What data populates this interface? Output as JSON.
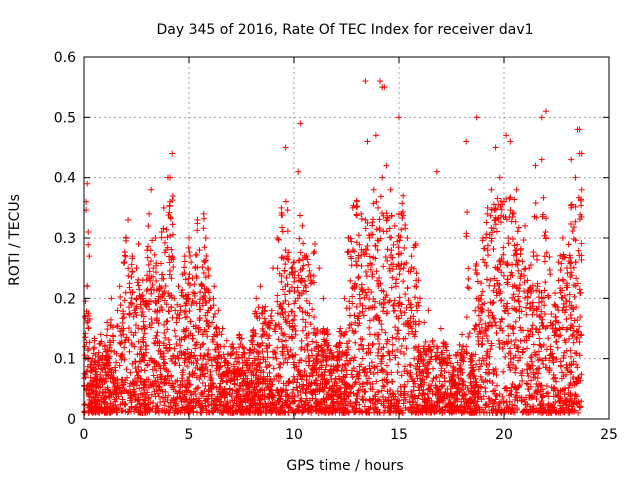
{
  "chart_data": {
    "type": "scatter",
    "title": "Day 345 of 2016, Rate Of TEC Index for receiver dav1",
    "xlabel": "GPS time / hours",
    "ylabel": "ROTI / TECUs",
    "xlim": [
      0,
      25
    ],
    "ylim": [
      0,
      0.6
    ],
    "xticks": [
      "0",
      "5",
      "10",
      "15",
      "20",
      "25"
    ],
    "yticks": [
      "0",
      "0.1",
      "0.2",
      "0.3",
      "0.4",
      "0.5",
      "0.6"
    ],
    "grid": true,
    "marker": "plus",
    "color": "#ff0000",
    "series": [
      {
        "name": "ROTI",
        "x": [
          0.05,
          0.1,
          0.15,
          0.2,
          0.25,
          0.3,
          0.1,
          0.2,
          0.15,
          0.05,
          0.3,
          0.4,
          0.5,
          0.6,
          0.7,
          0.8,
          0.9,
          1.0,
          1.1,
          1.2,
          1.3,
          1.4,
          1.5,
          1.6,
          1.7,
          1.8,
          1.9,
          2.0,
          2.1,
          2.2,
          2.3,
          2.4,
          2.5,
          2.6,
          2.7,
          2.8,
          2.9,
          3.0,
          3.1,
          3.2,
          3.3,
          3.4,
          3.5,
          3.6,
          3.7,
          3.8,
          3.9,
          4.0,
          4.1,
          4.2,
          4.3,
          4.4,
          4.5,
          4.6,
          4.7,
          4.8,
          4.9,
          5.0,
          5.1,
          5.2,
          5.3,
          5.4,
          5.5,
          5.6,
          5.7,
          5.8,
          5.9,
          6.0,
          6.1,
          6.2,
          6.3,
          6.4,
          6.5,
          6.6,
          6.7,
          6.8,
          6.9,
          7.0,
          7.2,
          7.4,
          7.6,
          7.8,
          8.0,
          8.2,
          8.4,
          8.6,
          8.8,
          9.0,
          9.2,
          9.4,
          9.6,
          9.8,
          10.0,
          10.2,
          10.4,
          10.6,
          10.8,
          11.0,
          11.2,
          11.4,
          11.6,
          11.8,
          12.0,
          12.2,
          12.4,
          12.6,
          12.8,
          13.0,
          13.2,
          13.4,
          13.6,
          13.8,
          14.0,
          14.2,
          14.4,
          14.6,
          14.8,
          15.0,
          15.2,
          15.4,
          15.6,
          15.8,
          16.0,
          16.2,
          16.4,
          16.6,
          16.8,
          17.0,
          17.2,
          17.4,
          17.6,
          17.8,
          18.0,
          18.2,
          18.4,
          18.6,
          18.8,
          19.0,
          19.2,
          19.4,
          19.6,
          19.8,
          20.0,
          20.2,
          20.4,
          20.6,
          20.8,
          21.0,
          21.2,
          21.4,
          21.6,
          21.8,
          22.0,
          22.2,
          22.4,
          22.6,
          22.8,
          23.0,
          23.2,
          23.4,
          23.6,
          23.7,
          2.5,
          4.2,
          4.1,
          10.2,
          10.3,
          9.6,
          12.8,
          13.5,
          14.1,
          14.2,
          13.9,
          15.0,
          16.8,
          18.2,
          18.7,
          19.6,
          20.1,
          21.8,
          21.8,
          23.2,
          23.5,
          23.6,
          23.7,
          14.3,
          13.4,
          22.0,
          21.5,
          20.3
        ],
        "y": [
          0.12,
          0.36,
          0.39,
          0.31,
          0.27,
          0.08,
          0.05,
          0.15,
          0.22,
          0.17,
          0.09,
          0.1,
          0.13,
          0.07,
          0.11,
          0.14,
          0.09,
          0.12,
          0.16,
          0.1,
          0.2,
          0.13,
          0.08,
          0.18,
          0.22,
          0.15,
          0.26,
          0.3,
          0.33,
          0.21,
          0.27,
          0.18,
          0.25,
          0.29,
          0.2,
          0.23,
          0.15,
          0.28,
          0.34,
          0.38,
          0.25,
          0.3,
          0.18,
          0.22,
          0.31,
          0.35,
          0.28,
          0.4,
          0.36,
          0.27,
          0.2,
          0.16,
          0.22,
          0.18,
          0.24,
          0.27,
          0.2,
          0.3,
          0.26,
          0.21,
          0.25,
          0.33,
          0.28,
          0.22,
          0.34,
          0.3,
          0.25,
          0.2,
          0.16,
          0.22,
          0.14,
          0.18,
          0.12,
          0.15,
          0.1,
          0.13,
          0.08,
          0.12,
          0.1,
          0.14,
          0.11,
          0.09,
          0.13,
          0.2,
          0.22,
          0.18,
          0.16,
          0.25,
          0.3,
          0.35,
          0.28,
          0.24,
          0.26,
          0.21,
          0.32,
          0.27,
          0.23,
          0.29,
          0.25,
          0.2,
          0.14,
          0.1,
          0.12,
          0.15,
          0.2,
          0.3,
          0.28,
          0.36,
          0.34,
          0.33,
          0.3,
          0.38,
          0.35,
          0.4,
          0.42,
          0.38,
          0.32,
          0.34,
          0.37,
          0.3,
          0.27,
          0.29,
          0.2,
          0.16,
          0.18,
          0.13,
          0.1,
          0.15,
          0.12,
          0.1,
          0.08,
          0.11,
          0.14,
          0.12,
          0.1,
          0.15,
          0.2,
          0.3,
          0.34,
          0.38,
          0.33,
          0.4,
          0.36,
          0.3,
          0.34,
          0.38,
          0.28,
          0.32,
          0.25,
          0.27,
          0.22,
          0.2,
          0.3,
          0.24,
          0.19,
          0.26,
          0.3,
          0.25,
          0.35,
          0.4,
          0.44,
          0.38,
          0.2,
          0.44,
          0.4,
          0.41,
          0.49,
          0.45,
          0.35,
          0.46,
          0.56,
          0.55,
          0.47,
          0.5,
          0.41,
          0.46,
          0.5,
          0.45,
          0.47,
          0.43,
          0.5,
          0.43,
          0.48,
          0.48,
          0.44,
          0.55,
          0.56,
          0.51,
          0.42,
          0.46
        ]
      }
    ]
  }
}
